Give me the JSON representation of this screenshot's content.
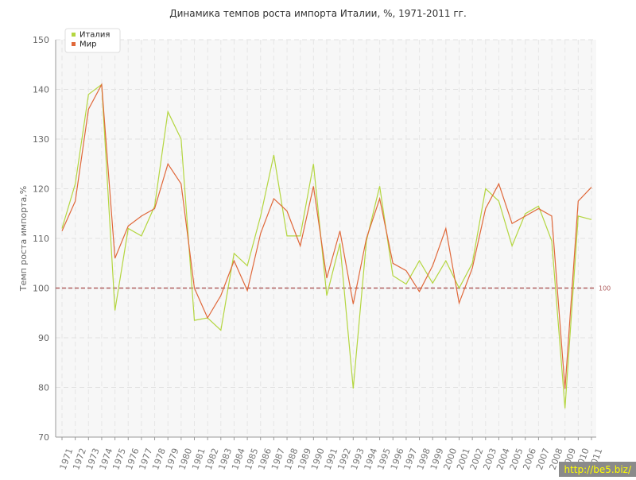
{
  "watermark": "http://be5.biz/",
  "chart_data": {
    "type": "line",
    "title": "Динамика темпов роста импорта Италии, %, 1971-2011 гг.",
    "xlabel": "",
    "ylabel": "Темп роста импорта,%",
    "ylim": [
      70,
      150
    ],
    "yticks": [
      70,
      80,
      90,
      100,
      110,
      120,
      130,
      140,
      150
    ],
    "grid": true,
    "legend_position": "top-left",
    "x": [
      1971,
      1972,
      1973,
      1974,
      1975,
      1976,
      1977,
      1978,
      1979,
      1980,
      1981,
      1982,
      1983,
      1984,
      1985,
      1986,
      1987,
      1988,
      1989,
      1990,
      1991,
      1992,
      1993,
      1994,
      1995,
      1996,
      1997,
      1998,
      1999,
      2000,
      2001,
      2002,
      2003,
      2004,
      2005,
      2006,
      2007,
      2008,
      2009,
      2010,
      2011
    ],
    "reference_line": {
      "value": 100,
      "label": "100",
      "color": "#b06060"
    },
    "series": [
      {
        "name": "Италия",
        "color": "#b4d640",
        "values": [
          112,
          121,
          139,
          141,
          95.5,
          112,
          110.5,
          116.5,
          135.5,
          130,
          93.5,
          94,
          91.5,
          107,
          104.5,
          114.5,
          126.8,
          110.5,
          110.5,
          125,
          98.5,
          109,
          79.8,
          109.5,
          120.5,
          102.5,
          100.8,
          105.5,
          101,
          105.5,
          100,
          105,
          120,
          117.5,
          108.5,
          115,
          116.5,
          109.5,
          75.8,
          114.5,
          113.8
        ]
      },
      {
        "name": "Мир",
        "color": "#e0683a",
        "values": [
          111.5,
          117.5,
          136,
          141,
          106,
          112.5,
          114.5,
          116,
          125,
          121,
          100,
          94,
          98.5,
          105.5,
          99.5,
          111,
          118,
          115.5,
          108.5,
          120.5,
          102,
          111.5,
          96.8,
          110,
          118,
          105,
          103.5,
          99.3,
          104.5,
          112,
          97,
          104,
          116,
          121,
          113,
          114.5,
          116,
          114.5,
          79.7,
          117.5,
          120.3
        ]
      }
    ]
  }
}
